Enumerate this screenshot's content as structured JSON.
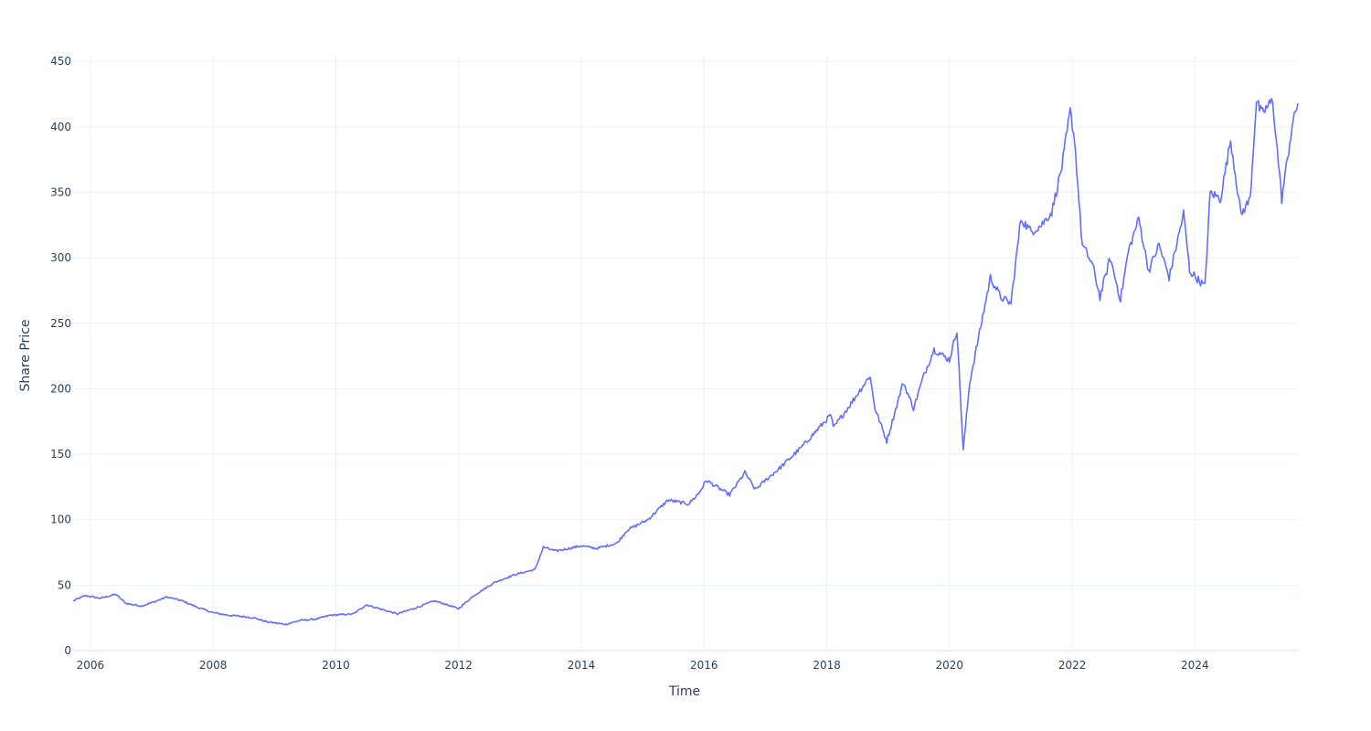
{
  "chart_data": {
    "type": "line",
    "title": "",
    "xlabel": "Time",
    "ylabel": "Share Price",
    "xlim": [
      "2005-09-20",
      "2025-09-05"
    ],
    "ylim": [
      0,
      455
    ],
    "x_ticks": [
      "2006",
      "2008",
      "2010",
      "2012",
      "2014",
      "2016",
      "2018",
      "2020",
      "2022",
      "2024"
    ],
    "y_ticks": [
      0,
      50,
      100,
      150,
      200,
      250,
      300,
      350,
      400,
      450
    ],
    "y_tick_labels": [
      "0",
      "50",
      "100",
      "150",
      "200",
      "250",
      "300",
      "350",
      "400",
      "450"
    ],
    "grid": true,
    "line_color": "#636efa",
    "grid_color": "#ebf0f8",
    "series": [
      {
        "x": [
          "2005-09-20",
          "2005-12-01",
          "2006-03-01",
          "2006-06-01",
          "2006-08-01",
          "2006-11-01",
          "2007-02-01",
          "2007-04-01",
          "2007-07-01",
          "2007-10-01",
          "2008-01-01",
          "2008-04-01",
          "2008-07-01",
          "2008-09-01",
          "2008-11-15",
          "2009-03-09",
          "2009-06-01",
          "2009-09-01",
          "2009-12-01",
          "2010-04-15",
          "2010-07-01",
          "2011-01-01",
          "2011-05-01",
          "2011-08-10",
          "2011-10-01",
          "2012-01-01",
          "2012-04-01",
          "2012-08-01",
          "2012-12-01",
          "2013-04-01",
          "2013-05-20",
          "2013-08-01",
          "2014-01-01",
          "2014-04-01",
          "2014-08-01",
          "2014-10-01",
          "2015-02-01",
          "2015-06-01",
          "2015-10-01",
          "2015-12-01",
          "2016-01-15",
          "2016-06-01",
          "2016-09-01",
          "2016-11-01",
          "2017-01-01",
          "2017-04-01",
          "2017-08-01",
          "2018-01-25",
          "2018-02-09",
          "2018-06-01",
          "2018-09-15",
          "2018-10-15",
          "2018-12-24",
          "2019-04-01",
          "2019-06-01",
          "2019-08-01",
          "2019-10-01",
          "2020-01-01",
          "2020-02-15",
          "2020-03-23",
          "2020-05-01",
          "2020-09-01",
          "2020-11-01",
          "2021-01-01",
          "2021-03-01",
          "2021-05-01",
          "2021-07-01",
          "2021-09-01",
          "2021-11-01",
          "2021-12-20",
          "2022-01-15",
          "2022-03-01",
          "2022-05-01",
          "2022-06-15",
          "2022-08-15",
          "2022-10-15",
          "2022-12-01",
          "2023-02-01",
          "2023-04-01",
          "2023-06-01",
          "2023-08-01",
          "2023-10-26",
          "2023-12-01",
          "2024-03-01",
          "2024-04-01",
          "2024-06-01",
          "2024-08-01",
          "2024-10-01",
          "2024-11-25",
          "2025-01-01",
          "2025-02-01",
          "2025-04-08",
          "2025-06-01",
          "2025-08-01",
          "2025-09-05"
        ],
        "y": [
          38,
          42,
          40,
          43,
          36,
          34,
          38,
          41,
          38,
          33,
          29,
          27,
          26,
          25,
          22,
          20,
          23,
          24,
          27,
          28,
          35,
          28,
          33,
          38,
          36,
          32,
          42,
          52,
          58,
          62,
          79,
          76,
          80,
          78,
          82,
          92,
          100,
          115,
          112,
          120,
          130,
          119,
          136,
          123,
          130,
          140,
          155,
          180,
          170,
          190,
          210,
          185,
          160,
          205,
          185,
          210,
          230,
          222,
          245,
          153,
          205,
          285,
          270,
          265,
          330,
          320,
          325,
          335,
          370,
          412,
          390,
          310,
          295,
          270,
          300,
          268,
          305,
          330,
          290,
          310,
          285,
          334,
          290,
          278,
          350,
          345,
          390,
          333,
          345,
          420,
          410,
          420,
          345,
          400,
          418
        ]
      }
    ]
  }
}
